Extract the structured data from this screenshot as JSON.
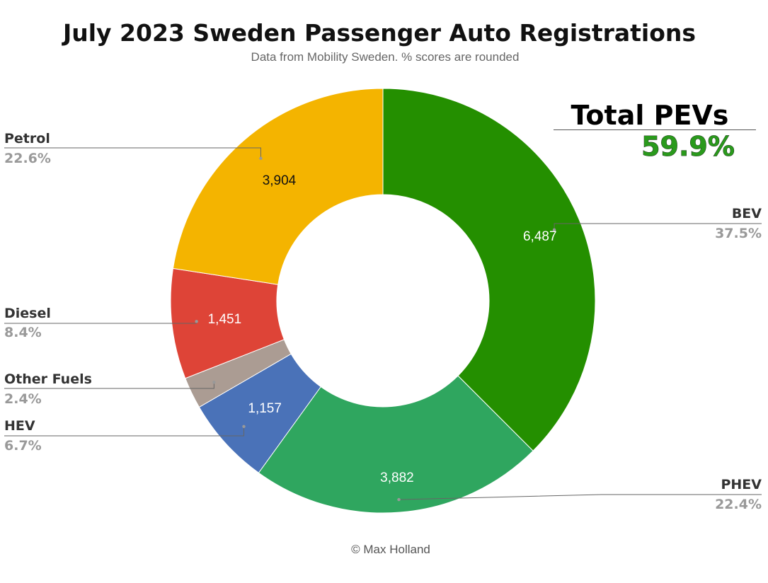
{
  "title": "July 2023 Sweden Passenger Auto Registrations",
  "subtitle": "Data from Mobility Sweden. % scores are rounded",
  "footer": "© Max Holland",
  "callout": {
    "title": "Total PEVs",
    "value": "59.9%"
  },
  "chart_data": {
    "type": "pie",
    "variant": "donut",
    "title": "July 2023 Sweden Passenger Auto Registrations",
    "subtitle": "Data from Mobility Sweden. % scores are rounded",
    "legend": "none",
    "slices": [
      {
        "label": "BEV",
        "value": 6487,
        "value_label": "6,487",
        "percent_label": "37.5%",
        "color": "#248f00",
        "value_text_color": "#ffffff"
      },
      {
        "label": "PHEV",
        "value": 3882,
        "value_label": "3,882",
        "percent_label": "22.4%",
        "color": "#2fa65f",
        "value_text_color": "#ffffff"
      },
      {
        "label": "HEV",
        "value": 1157,
        "value_label": "1,157",
        "percent_label": "6.7%",
        "color": "#4a72b8",
        "value_text_color": "#ffffff"
      },
      {
        "label": "Other Fuels",
        "value": 415,
        "value_label": "",
        "percent_label": "2.4%",
        "color": "#ab9c93",
        "value_text_color": "#ffffff"
      },
      {
        "label": "Diesel",
        "value": 1451,
        "value_label": "1,451",
        "percent_label": "8.4%",
        "color": "#de4437",
        "value_text_color": "#ffffff"
      },
      {
        "label": "Petrol",
        "value": 3904,
        "value_label": "3,904",
        "percent_label": "22.6%",
        "color": "#f4b400",
        "value_text_color": "#111111"
      }
    ]
  }
}
